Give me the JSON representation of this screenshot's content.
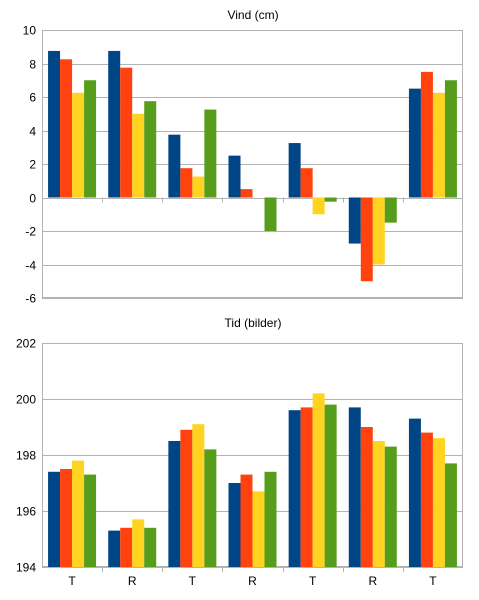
{
  "chart_data": [
    {
      "type": "bar",
      "title": "Vind (cm)",
      "categories": [
        "",
        "",
        "",
        "",
        "",
        "",
        ""
      ],
      "ylim": [
        -6,
        10
      ],
      "ytick_step": 2,
      "grid": true,
      "colors": [
        "#004586",
        "#ff420e",
        "#ffd320",
        "#579d1c"
      ],
      "series": [
        {
          "values": [
            8.75,
            8.75,
            3.75,
            2.5,
            3.25,
            -2.75,
            6.5
          ]
        },
        {
          "values": [
            8.25,
            7.75,
            1.75,
            0.5,
            1.75,
            -5.0,
            7.5
          ]
        },
        {
          "values": [
            6.25,
            5.0,
            1.25,
            0,
            -1.0,
            -4.0,
            6.25
          ]
        },
        {
          "values": [
            7.0,
            5.75,
            5.25,
            -2.0,
            -0.25,
            -1.5,
            7.0
          ]
        }
      ]
    },
    {
      "type": "bar",
      "title": "Tid (bilder)",
      "categories": [
        "T",
        "R",
        "T",
        "R",
        "T",
        "R",
        "T"
      ],
      "ylim": [
        194,
        202
      ],
      "ytick_step": 2,
      "grid": true,
      "colors": [
        "#004586",
        "#ff420e",
        "#ffd320",
        "#579d1c"
      ],
      "series": [
        {
          "values": [
            197.4,
            195.3,
            198.5,
            197.0,
            199.6,
            199.7,
            199.3
          ]
        },
        {
          "values": [
            197.5,
            195.4,
            198.9,
            197.3,
            199.7,
            199.0,
            198.8
          ]
        },
        {
          "values": [
            197.8,
            195.7,
            199.1,
            196.7,
            200.2,
            198.5,
            198.6
          ]
        },
        {
          "values": [
            197.3,
            195.4,
            198.2,
            197.4,
            199.8,
            198.3,
            197.7
          ]
        }
      ]
    }
  ]
}
